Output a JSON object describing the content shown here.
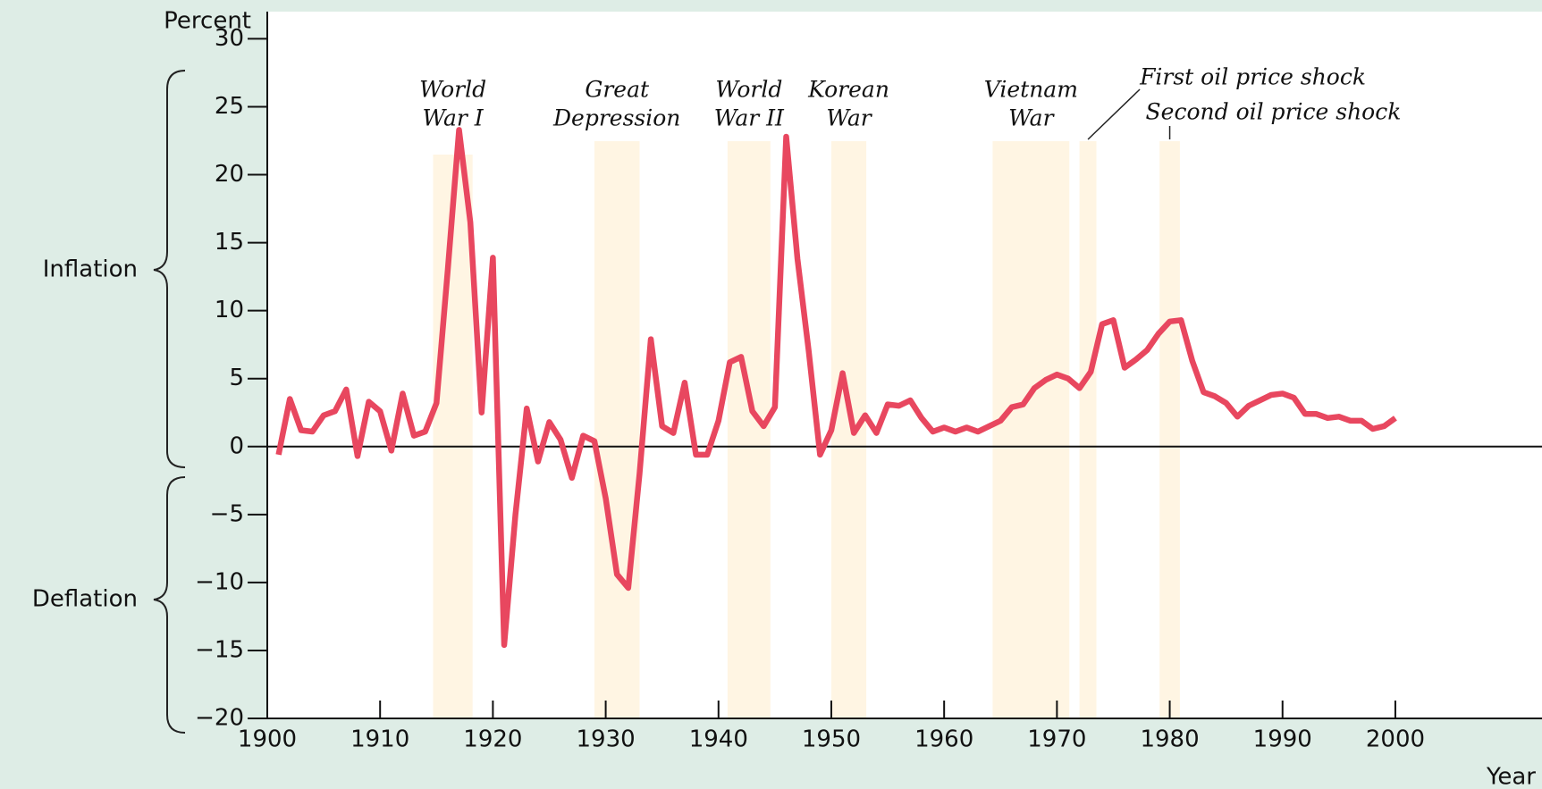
{
  "chart_data": {
    "type": "line",
    "y_label": "Percent",
    "x_label": "Year",
    "side_labels": [
      "Inflation",
      "Deflation"
    ],
    "x": [
      1901,
      1902,
      1903,
      1904,
      1905,
      1906,
      1907,
      1908,
      1909,
      1910,
      1911,
      1912,
      1913,
      1914,
      1915,
      1916,
      1917,
      1918,
      1919,
      1920,
      1921,
      1922,
      1923,
      1924,
      1925,
      1926,
      1927,
      1928,
      1929,
      1930,
      1931,
      1932,
      1933,
      1934,
      1935,
      1936,
      1937,
      1938,
      1939,
      1940,
      1941,
      1942,
      1943,
      1944,
      1945,
      1946,
      1947,
      1948,
      1949,
      1950,
      1951,
      1952,
      1953,
      1954,
      1955,
      1956,
      1957,
      1958,
      1959,
      1960,
      1961,
      1962,
      1963,
      1964,
      1965,
      1966,
      1967,
      1968,
      1969,
      1970,
      1971,
      1972,
      1973,
      1974,
      1975,
      1976,
      1977,
      1978,
      1979,
      1980,
      1981,
      1982,
      1983,
      1984,
      1985,
      1986,
      1987,
      1988,
      1989,
      1990,
      1991,
      1992,
      1993,
      1994,
      1995,
      1996,
      1997,
      1998,
      1999,
      2000
    ],
    "series": [
      {
        "color": "#e8475f",
        "values": [
          -0.6,
          3.5,
          1.2,
          1.1,
          2.3,
          2.6,
          4.2,
          -0.7,
          3.3,
          2.6,
          -0.3,
          3.9,
          0.8,
          1.1,
          3.2,
          13,
          23.3,
          16.5,
          2.5,
          13.9,
          -14.6,
          -5,
          2.8,
          -1.1,
          1.8,
          0.5,
          -2.3,
          0.8,
          0.4,
          -3.8,
          -9.4,
          -10.4,
          -2,
          7.9,
          1.5,
          1,
          4.7,
          -0.6,
          -0.6,
          1.9,
          6.2,
          6.6,
          2.6,
          1.5,
          2.9,
          22.8,
          13.8,
          7,
          -0.6,
          1.2,
          5.4,
          1,
          2.3,
          1,
          3.1,
          3,
          3.4,
          2.1,
          1.1,
          1.4,
          1.1,
          1.4,
          1.1,
          1.5,
          1.9,
          2.9,
          3.1,
          4.3,
          4.9,
          5.3,
          5,
          4.3,
          5.5,
          9,
          9.3,
          5.8,
          6.4,
          7.1,
          8.3,
          9.2,
          9.3,
          6.3,
          4,
          3.7,
          3.2,
          2.2,
          3,
          3.4,
          3.8,
          3.9,
          3.6,
          2.4,
          2.4,
          2.1,
          2.2,
          1.9,
          1.9,
          1.3,
          1.5,
          2.1
        ]
      }
    ],
    "periods": [
      {
        "label": [
          "World",
          "War I"
        ],
        "start": 1914.7,
        "end": 1918.2
      },
      {
        "label": [
          "Great",
          "Depression"
        ],
        "start": 1929,
        "end": 1933
      },
      {
        "label": [
          "World",
          "War II"
        ],
        "start": 1940.8,
        "end": 1944.6
      },
      {
        "label": [
          "Korean",
          "War"
        ],
        "start": 1950,
        "end": 1953.1
      },
      {
        "label": [
          "Vietnam",
          "War"
        ],
        "start": 1964.3,
        "end": 1971.1
      },
      {
        "label": [
          "First oil price shock"
        ],
        "start": 1972,
        "end": 1973.5
      },
      {
        "label": [
          "Second oil price shock"
        ],
        "start": 1979.1,
        "end": 1980.9
      }
    ],
    "period_color": "#fff5e3",
    "xlim": [
      1900,
      2013
    ],
    "xticks": [
      1900,
      1910,
      1920,
      1930,
      1940,
      1950,
      1960,
      1970,
      1980,
      1990,
      2000
    ],
    "ylim": [
      -20,
      32
    ],
    "yticks": [
      30,
      25,
      20,
      15,
      10,
      5,
      0,
      {
        "value": -5,
        "label": "−5"
      },
      {
        "value": -10,
        "label": "−10"
      },
      {
        "value": -15,
        "label": "−15"
      },
      {
        "value": -20,
        "label": "−20"
      }
    ]
  }
}
